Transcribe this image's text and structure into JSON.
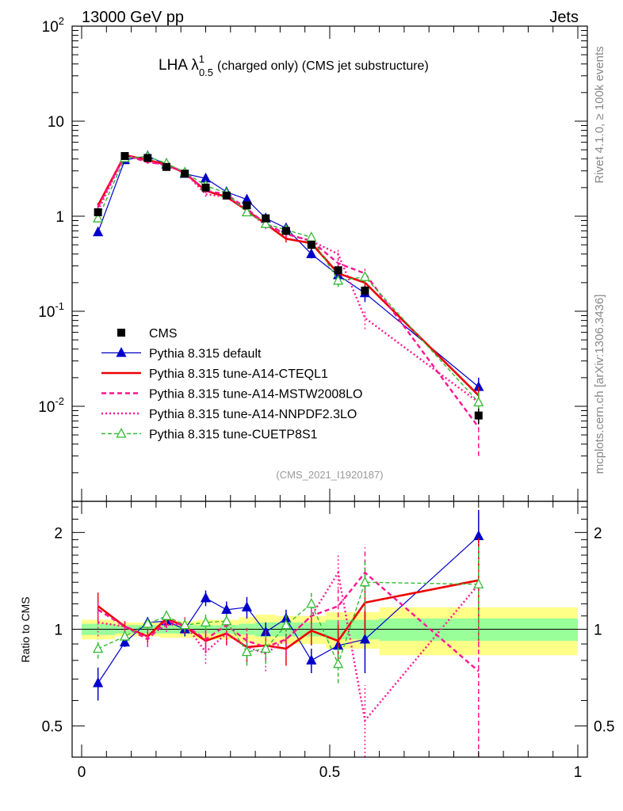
{
  "header": {
    "energy_label": "13000 GeV pp",
    "process_label": "Jets",
    "plot_title": "LHA λ",
    "plot_title_sup": "1",
    "plot_title_sub": "0.5",
    "plot_title_rest": "(charged only) (CMS jet substructure)",
    "analysis_id": "(CMS_2021_I1920187)",
    "side_label_top": "Rivet 4.1.0, ≥ 100k events",
    "side_label_bottom": "mcplots.cern.ch [arXiv:1306.3436]"
  },
  "colors": {
    "data": "#000000",
    "default": "#0000cc",
    "cteql1": "#ee0000",
    "mstw": "#ff1493",
    "nnpdf": "#ff1493",
    "cuetp8s1": "#33bb33",
    "band_inner": "#99ff99",
    "band_outer": "#ffff88"
  },
  "chart_data": [
    {
      "type": "line",
      "panel": "main",
      "yscale": "log",
      "xlim": [
        0,
        1
      ],
      "ylim": [
        0.001,
        100
      ],
      "xlabel": "",
      "ylabel": "",
      "ytick_labels": [
        "10^-2",
        "10^-1",
        "1",
        "10",
        "10^2"
      ],
      "x": [
        0.033,
        0.087,
        0.133,
        0.171,
        0.208,
        0.25,
        0.292,
        0.333,
        0.371,
        0.412,
        0.463,
        0.517,
        0.571,
        0.8
      ],
      "series": [
        {
          "name": "CMS",
          "style": "data",
          "values": [
            1.1,
            4.3,
            4.1,
            3.3,
            2.8,
            2.0,
            1.65,
            1.3,
            0.95,
            0.7,
            0.5,
            0.27,
            0.165,
            0.008
          ],
          "errors": [
            0.1,
            0.2,
            0.2,
            0.15,
            0.12,
            0.1,
            0.1,
            0.1,
            0.07,
            0.06,
            0.05,
            0.03,
            0.02,
            0.0015
          ]
        },
        {
          "name": "Pythia 8.315 default",
          "style": "default",
          "values": [
            0.68,
            3.9,
            4.3,
            3.5,
            2.8,
            2.5,
            1.8,
            1.5,
            0.95,
            0.75,
            0.4,
            0.24,
            0.155,
            0.016
          ],
          "errors": [
            0.05,
            0.15,
            0.2,
            0.15,
            0.12,
            0.12,
            0.12,
            0.12,
            0.08,
            0.06,
            0.04,
            0.04,
            0.03,
            0.004
          ]
        },
        {
          "name": "Pythia 8.315 tune-A14-CTEQL1",
          "style": "cteql1",
          "values": [
            1.3,
            4.4,
            3.9,
            3.5,
            2.85,
            1.85,
            1.6,
            1.15,
            0.83,
            0.58,
            0.52,
            0.25,
            0.2,
            0.013
          ],
          "errors": [
            0.08,
            0.15,
            0.15,
            0.15,
            0.12,
            0.1,
            0.1,
            0.1,
            0.07,
            0.05,
            0.05,
            0.03,
            0.03,
            0.003
          ]
        },
        {
          "name": "Pythia 8.315 tune-A14-MSTW2008LO",
          "style": "mstw",
          "values": [
            1.25,
            4.4,
            3.7,
            3.5,
            2.9,
            1.85,
            1.7,
            1.2,
            0.83,
            0.65,
            0.55,
            0.32,
            0.25,
            0.006
          ],
          "errors": [
            0.08,
            0.15,
            0.15,
            0.15,
            0.12,
            0.1,
            0.1,
            0.1,
            0.07,
            0.05,
            0.05,
            0.04,
            0.03,
            0.003
          ]
        },
        {
          "name": "Pythia 8.315 tune-A14-NNPDF2.3LO",
          "style": "nnpdf",
          "values": [
            1.15,
            4.4,
            3.8,
            3.4,
            2.9,
            1.7,
            1.6,
            1.15,
            0.8,
            0.65,
            0.55,
            0.4,
            0.085,
            0.011
          ],
          "errors": [
            0.08,
            0.15,
            0.15,
            0.15,
            0.12,
            0.1,
            0.1,
            0.1,
            0.07,
            0.05,
            0.05,
            0.05,
            0.02,
            0.003
          ]
        },
        {
          "name": "Pythia 8.315 tune-CUETP8S1",
          "style": "cuetp8s1",
          "values": [
            0.95,
            4.1,
            4.25,
            3.6,
            2.9,
            2.1,
            1.75,
            1.1,
            0.83,
            0.72,
            0.6,
            0.21,
            0.23,
            0.011
          ],
          "errors": [
            0.06,
            0.15,
            0.15,
            0.15,
            0.12,
            0.1,
            0.1,
            0.1,
            0.07,
            0.05,
            0.05,
            0.03,
            0.03,
            0.003
          ]
        }
      ]
    },
    {
      "type": "line",
      "panel": "ratio",
      "yscale": "log",
      "xlim": [
        0,
        1
      ],
      "ylim": [
        0.4,
        2.5
      ],
      "xlabel": "",
      "ylabel": "Ratio to CMS",
      "xtick_labels": [
        "0",
        "0.5",
        "1"
      ],
      "ytick_labels": [
        "0.5",
        "1",
        "2"
      ],
      "x": [
        0.033,
        0.087,
        0.133,
        0.171,
        0.208,
        0.25,
        0.292,
        0.333,
        0.371,
        0.412,
        0.463,
        0.517,
        0.571,
        0.8
      ],
      "bin_edges": [
        0,
        0.067,
        0.108,
        0.158,
        0.183,
        0.233,
        0.267,
        0.317,
        0.35,
        0.392,
        0.433,
        0.492,
        0.542,
        0.6,
        1.0
      ],
      "band_inner_halfwidth": [
        0.04,
        0.03,
        0.03,
        0.03,
        0.03,
        0.03,
        0.03,
        0.04,
        0.05,
        0.05,
        0.05,
        0.07,
        0.07,
        0.08
      ],
      "band_outer_halfwidth": [
        0.07,
        0.05,
        0.05,
        0.06,
        0.06,
        0.07,
        0.07,
        0.09,
        0.11,
        0.1,
        0.1,
        0.13,
        0.13,
        0.17
      ],
      "series": [
        {
          "name": "Pythia 8.315 default",
          "style": "default",
          "values": [
            0.68,
            0.91,
            1.05,
            1.06,
            1.0,
            1.25,
            1.15,
            1.17,
            0.98,
            1.08,
            0.8,
            0.89,
            0.93,
            1.95
          ],
          "errors": [
            0.08,
            0.03,
            0.04,
            0.05,
            0.05,
            0.07,
            0.07,
            0.09,
            0.07,
            0.07,
            0.07,
            0.1,
            0.2,
            0.4
          ]
        },
        {
          "name": "Pythia 8.315 tune-A14-CTEQL1",
          "style": "cteql1",
          "values": [
            1.18,
            1.02,
            0.95,
            1.08,
            1.02,
            0.92,
            0.97,
            0.88,
            0.89,
            0.87,
            0.99,
            0.92,
            1.21,
            1.42
          ],
          "errors": [
            0.12,
            0.04,
            0.05,
            0.05,
            0.05,
            0.07,
            0.08,
            0.09,
            0.1,
            0.1,
            0.1,
            0.12,
            0.25,
            0.5
          ]
        },
        {
          "name": "Pythia 8.315 tune-A14-MSTW2008LO",
          "style": "mstw",
          "values": [
            1.15,
            1.02,
            0.93,
            1.06,
            1.03,
            0.93,
            1.03,
            0.92,
            0.88,
            0.93,
            1.1,
            1.18,
            1.5,
            0.74
          ],
          "errors": [
            0.1,
            0.04,
            0.05,
            0.05,
            0.05,
            0.07,
            0.08,
            0.09,
            0.1,
            0.1,
            0.1,
            0.15,
            0.3,
            0.4
          ]
        },
        {
          "name": "Pythia 8.315 tune-A14-NNPDF2.3LO",
          "style": "nnpdf",
          "values": [
            1.05,
            1.02,
            0.95,
            1.03,
            1.04,
            0.85,
            0.97,
            0.88,
            0.84,
            0.93,
            1.1,
            1.5,
            0.52,
            1.38
          ],
          "errors": [
            0.1,
            0.04,
            0.05,
            0.05,
            0.05,
            0.07,
            0.08,
            0.09,
            0.1,
            0.1,
            0.1,
            0.2,
            0.15,
            0.5
          ]
        },
        {
          "name": "Pythia 8.315 tune-CUETP8S1",
          "style": "cuetp8s1",
          "values": [
            0.87,
            0.95,
            1.04,
            1.1,
            1.03,
            1.05,
            1.06,
            0.85,
            0.87,
            1.03,
            1.2,
            0.78,
            1.4,
            1.38
          ],
          "errors": [
            0.06,
            0.03,
            0.04,
            0.05,
            0.05,
            0.06,
            0.07,
            0.08,
            0.09,
            0.09,
            0.1,
            0.1,
            0.25,
            0.45
          ]
        }
      ]
    }
  ]
}
